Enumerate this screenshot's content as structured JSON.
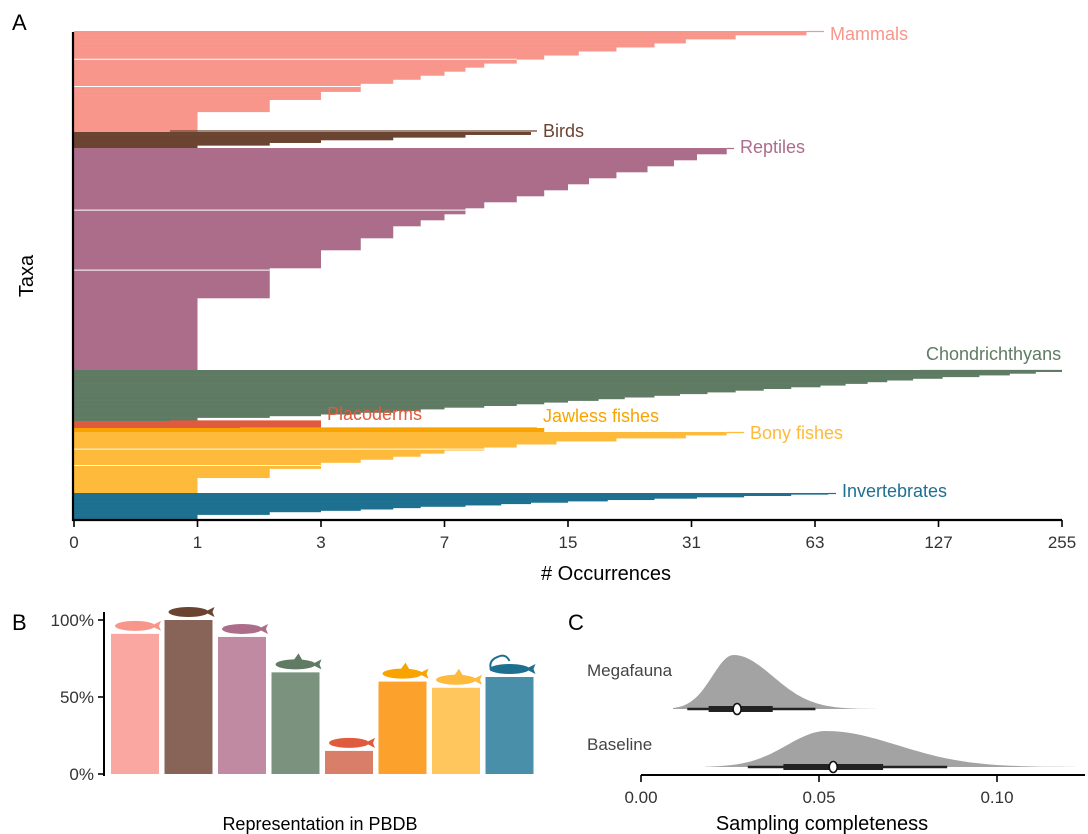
{
  "panels": {
    "a": "A",
    "b": "B",
    "c": "C"
  },
  "colors": {
    "mammals": "#F8968C",
    "birds": "#6B4431",
    "reptiles": "#AB6D8A",
    "chondrichthyans": "#5F7B63",
    "placoderms": "#E05A3E",
    "jawless": "#F8A300",
    "bony": "#FDBA3B",
    "invertebrates": "#1E7091"
  },
  "chart_data": [
    {
      "panel": "A",
      "type": "bar",
      "orientation": "horizontal",
      "xlabel": "# Occurrences",
      "ylabel": "Taxa",
      "x_scale": "log2(x+1)",
      "xticks": [
        "0",
        "1",
        "3",
        "7",
        "15",
        "31",
        "63",
        "127",
        "255"
      ],
      "xlim": [
        0,
        255
      ],
      "series": [
        {
          "name": "Mammals",
          "max_occurrences": 60,
          "values": [
            60,
            40,
            30,
            25,
            20,
            16,
            13,
            11,
            9,
            8,
            7,
            6,
            5,
            4,
            4,
            3,
            3,
            2,
            2,
            2,
            1,
            1,
            1,
            1,
            1
          ]
        },
        {
          "name": "Birds",
          "max_occurrences": 12,
          "values": [
            12,
            8,
            5,
            3,
            2,
            1
          ]
        },
        {
          "name": "Reptiles",
          "max_occurrences": 38,
          "values": [
            38,
            32,
            28,
            24,
            20,
            17,
            15,
            13,
            11,
            9,
            8,
            7,
            6,
            5,
            5,
            4,
            4,
            3,
            3,
            3,
            2,
            2,
            2,
            2,
            2,
            1,
            1,
            1,
            1,
            1,
            1,
            1,
            1,
            1,
            1,
            1,
            1
          ]
        },
        {
          "name": "Chondrichthyans",
          "max_occurrences": 255,
          "values": [
            255,
            220,
            190,
            160,
            130,
            110,
            95,
            85,
            75,
            65,
            55,
            47,
            40,
            34,
            29,
            25,
            21,
            18,
            15,
            13,
            11,
            9,
            7,
            6,
            5,
            4,
            3,
            2,
            1,
            1
          ]
        },
        {
          "name": "Placoderms",
          "max_occurrences": 3,
          "values": [
            3
          ]
        },
        {
          "name": "Jawless fishes",
          "max_occurrences": 13,
          "values": [
            13
          ]
        },
        {
          "name": "Bony fishes",
          "max_occurrences": 38,
          "values": [
            38,
            30,
            20,
            14,
            11,
            9,
            7,
            6,
            5,
            4,
            3,
            3,
            2,
            2,
            2,
            1,
            1,
            1,
            1,
            1
          ]
        },
        {
          "name": "Invertebrates",
          "max_occurrences": 68,
          "values": [
            68,
            55,
            42,
            32,
            25,
            19,
            15,
            12,
            10,
            8,
            6,
            5,
            4,
            3,
            2,
            2,
            1,
            1,
            1,
            1
          ]
        }
      ]
    },
    {
      "panel": "B",
      "type": "bar",
      "xlabel": "Representation in PBDB",
      "ylabel": "",
      "ylim": [
        0,
        1
      ],
      "yticks": [
        "0%",
        "50%",
        "100%"
      ],
      "categories": [
        "Mammals",
        "Birds",
        "Reptiles",
        "Chondrichthyans",
        "Placoderms",
        "Jawless fishes",
        "Bony fishes",
        "Invertebrates"
      ],
      "values": [
        0.91,
        1.0,
        0.89,
        0.66,
        0.15,
        0.6,
        0.56,
        0.63
      ],
      "colors": [
        "#F9A7A0",
        "#886458",
        "#BF8AA2",
        "#7B927F",
        "#D97E69",
        "#FBA12C",
        "#FEC65D",
        "#4A8FAA"
      ]
    },
    {
      "panel": "C",
      "type": "density",
      "xlabel": "Sampling completeness",
      "ylabel": "",
      "xlim": [
        0,
        0.12
      ],
      "xticks": [
        "0.00",
        "0.05",
        "0.10"
      ],
      "series": [
        {
          "name": "Megafauna",
          "median": 0.027,
          "q25": 0.019,
          "q75": 0.037,
          "lo": 0.013,
          "hi": 0.049,
          "peak": 0.026,
          "sd_left": 0.006,
          "sd_right": 0.011,
          "min": 0.009,
          "max": 0.066
        },
        {
          "name": "Baseline",
          "median": 0.054,
          "q25": 0.04,
          "q75": 0.068,
          "lo": 0.03,
          "hi": 0.086,
          "peak": 0.052,
          "sd_left": 0.011,
          "sd_right": 0.02,
          "min": 0.018,
          "max": 0.122
        }
      ]
    }
  ]
}
